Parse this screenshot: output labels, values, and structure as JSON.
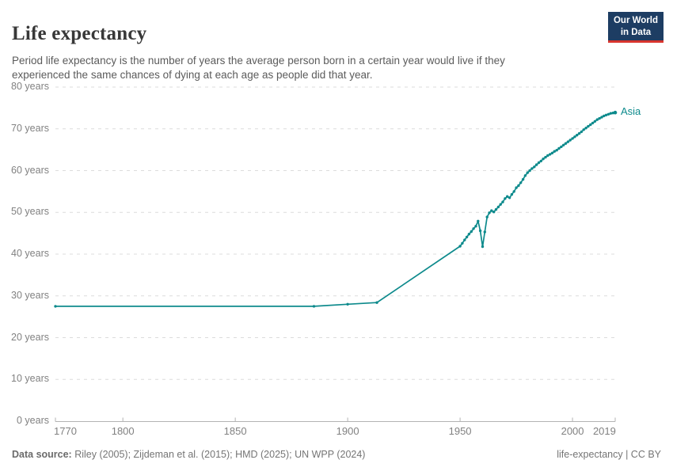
{
  "header": {
    "title": "Life expectancy",
    "subtitle": "Period life expectancy is the number of years the average person born in a certain year would live if they experienced the same chances of dying at each age as people did that year."
  },
  "logo": {
    "line1": "Our World",
    "line2": "in Data",
    "bg_color": "#1d3d63",
    "accent_color": "#d8352e"
  },
  "footer": {
    "source_label": "Data source:",
    "source_text": " Riley (2005); Zijdeman et al. (2015); HMD (2025); UN WPP (2024)",
    "right_text": "life-expectancy | CC BY"
  },
  "chart_data": {
    "type": "line",
    "title": "Life expectancy",
    "xlabel": "",
    "ylabel": "",
    "grid": "horizontal-dashed",
    "legend_position": "end-of-line-label",
    "x_axis": {
      "lim": [
        1770,
        2019
      ],
      "ticks": [
        1770,
        1800,
        1850,
        1900,
        1950,
        2000,
        2019
      ]
    },
    "y_axis": {
      "lim": [
        0,
        80
      ],
      "ticks": [
        0,
        10,
        20,
        30,
        40,
        50,
        60,
        70,
        80
      ],
      "tick_suffix": " years"
    },
    "series": [
      {
        "name": "Asia",
        "color": "#0d8a8c",
        "points": [
          [
            1770,
            27.5
          ],
          [
            1885,
            27.5
          ],
          [
            1900,
            28.0
          ],
          [
            1913,
            28.4
          ],
          [
            1950,
            41.9
          ],
          [
            1951,
            42.6
          ],
          [
            1952,
            43.4
          ],
          [
            1953,
            44.1
          ],
          [
            1954,
            44.8
          ],
          [
            1955,
            45.4
          ],
          [
            1956,
            46.1
          ],
          [
            1957,
            46.7
          ],
          [
            1958,
            47.9
          ],
          [
            1959,
            45.6
          ],
          [
            1960,
            41.8
          ],
          [
            1961,
            45.3
          ],
          [
            1962,
            48.9
          ],
          [
            1963,
            49.9
          ],
          [
            1964,
            50.4
          ],
          [
            1965,
            50.1
          ],
          [
            1966,
            50.7
          ],
          [
            1967,
            51.3
          ],
          [
            1968,
            51.9
          ],
          [
            1969,
            52.5
          ],
          [
            1970,
            53.3
          ],
          [
            1971,
            53.8
          ],
          [
            1972,
            53.5
          ],
          [
            1973,
            54.3
          ],
          [
            1974,
            55.0
          ],
          [
            1975,
            55.9
          ],
          [
            1976,
            56.4
          ],
          [
            1977,
            57.1
          ],
          [
            1978,
            57.9
          ],
          [
            1979,
            58.8
          ],
          [
            1980,
            59.5
          ],
          [
            1981,
            60.0
          ],
          [
            1982,
            60.5
          ],
          [
            1983,
            60.9
          ],
          [
            1984,
            61.4
          ],
          [
            1985,
            61.9
          ],
          [
            1986,
            62.3
          ],
          [
            1987,
            62.8
          ],
          [
            1988,
            63.2
          ],
          [
            1989,
            63.6
          ],
          [
            1990,
            63.9
          ],
          [
            1991,
            64.2
          ],
          [
            1992,
            64.6
          ],
          [
            1993,
            64.9
          ],
          [
            1994,
            65.3
          ],
          [
            1995,
            65.7
          ],
          [
            1996,
            66.1
          ],
          [
            1997,
            66.5
          ],
          [
            1998,
            66.9
          ],
          [
            1999,
            67.3
          ],
          [
            2000,
            67.7
          ],
          [
            2001,
            68.1
          ],
          [
            2002,
            68.5
          ],
          [
            2003,
            68.9
          ],
          [
            2004,
            69.3
          ],
          [
            2005,
            69.8
          ],
          [
            2006,
            70.2
          ],
          [
            2007,
            70.6
          ],
          [
            2008,
            71.0
          ],
          [
            2009,
            71.4
          ],
          [
            2010,
            71.8
          ],
          [
            2011,
            72.2
          ],
          [
            2012,
            72.5
          ],
          [
            2013,
            72.8
          ],
          [
            2014,
            73.1
          ],
          [
            2015,
            73.3
          ],
          [
            2016,
            73.5
          ],
          [
            2017,
            73.7
          ],
          [
            2018,
            73.8
          ],
          [
            2019,
            73.9
          ]
        ]
      }
    ]
  }
}
